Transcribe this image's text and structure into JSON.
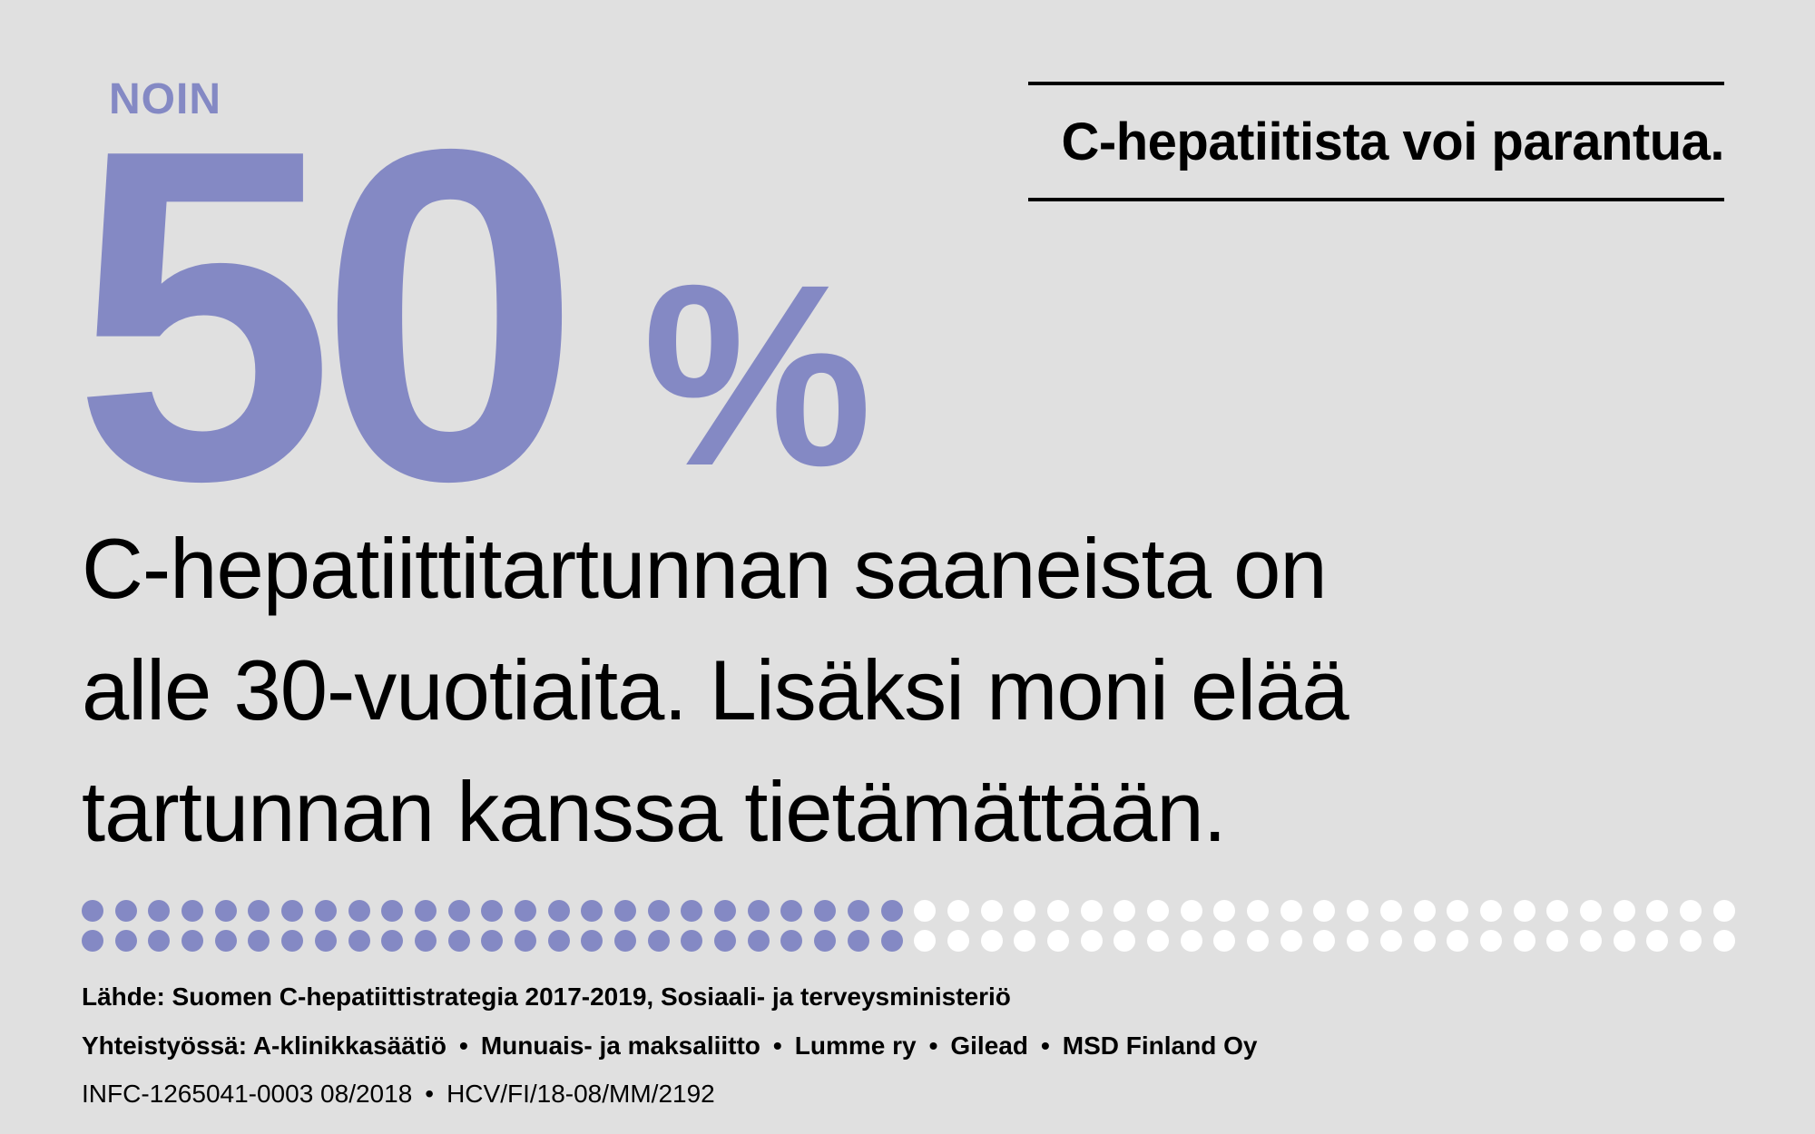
{
  "colors": {
    "accent": "#8489c4",
    "filled_dot": "#8489c4",
    "empty_dot": "#ffffff",
    "background": "#e0e0e0"
  },
  "stat": {
    "prefix": "NOIN",
    "value": "50",
    "unit": "%"
  },
  "headline": "C-hepatiitista voi parantua.",
  "body_lines": [
    "C-hepatiittitartunnan saaneista on",
    "alle 30-vuotiaita. Lisäksi moni elää",
    "tartunnan kanssa tietämättään."
  ],
  "dots": {
    "rows": 2,
    "per_row": 50,
    "filled_per_row": 25,
    "filled_percent": 50
  },
  "footer": {
    "source": "Lähde: Suomen C-hepatiittistrategia 2017-2019, Sosiaali- ja terveysministeriö",
    "partners_label": "Yhteistyössä:",
    "partners": [
      "A-klinikkasäätiö",
      "Munuais- ja maksaliitto",
      "Lumme ry",
      "Gilead",
      "MSD Finland Oy"
    ],
    "codes": [
      "INFC-1265041-0003 08/2018",
      "HCV/FI/18-08/MM/2192"
    ],
    "separator": "•"
  }
}
